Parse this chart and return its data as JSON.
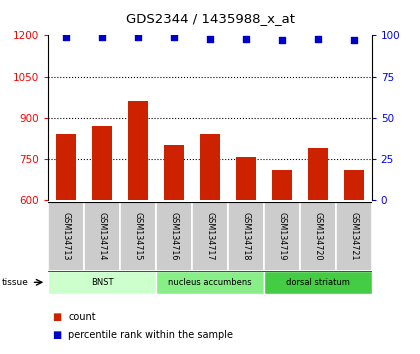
{
  "title": "GDS2344 / 1435988_x_at",
  "samples": [
    "GSM134713",
    "GSM134714",
    "GSM134715",
    "GSM134716",
    "GSM134717",
    "GSM134718",
    "GSM134719",
    "GSM134720",
    "GSM134721"
  ],
  "counts": [
    840,
    868,
    962,
    800,
    840,
    758,
    708,
    790,
    708
  ],
  "percentiles": [
    99,
    99,
    99,
    99,
    98,
    98,
    97,
    98,
    97
  ],
  "bar_color": "#cc2200",
  "dot_color": "#0000cc",
  "ylim_left": [
    600,
    1200
  ],
  "ylim_right": [
    0,
    100
  ],
  "yticks_left": [
    600,
    750,
    900,
    1050,
    1200
  ],
  "yticks_right": [
    0,
    25,
    50,
    75,
    100
  ],
  "grid_ticks": [
    750,
    900,
    1050
  ],
  "tissue_groups": [
    {
      "label": "BNST",
      "start": 0,
      "end": 3,
      "color": "#ccffcc"
    },
    {
      "label": "nucleus accumbens",
      "start": 3,
      "end": 6,
      "color": "#88ee88"
    },
    {
      "label": "dorsal striatum",
      "start": 6,
      "end": 9,
      "color": "#44cc44"
    }
  ],
  "sample_bg_color": "#cccccc",
  "bg_color": "#ffffff"
}
